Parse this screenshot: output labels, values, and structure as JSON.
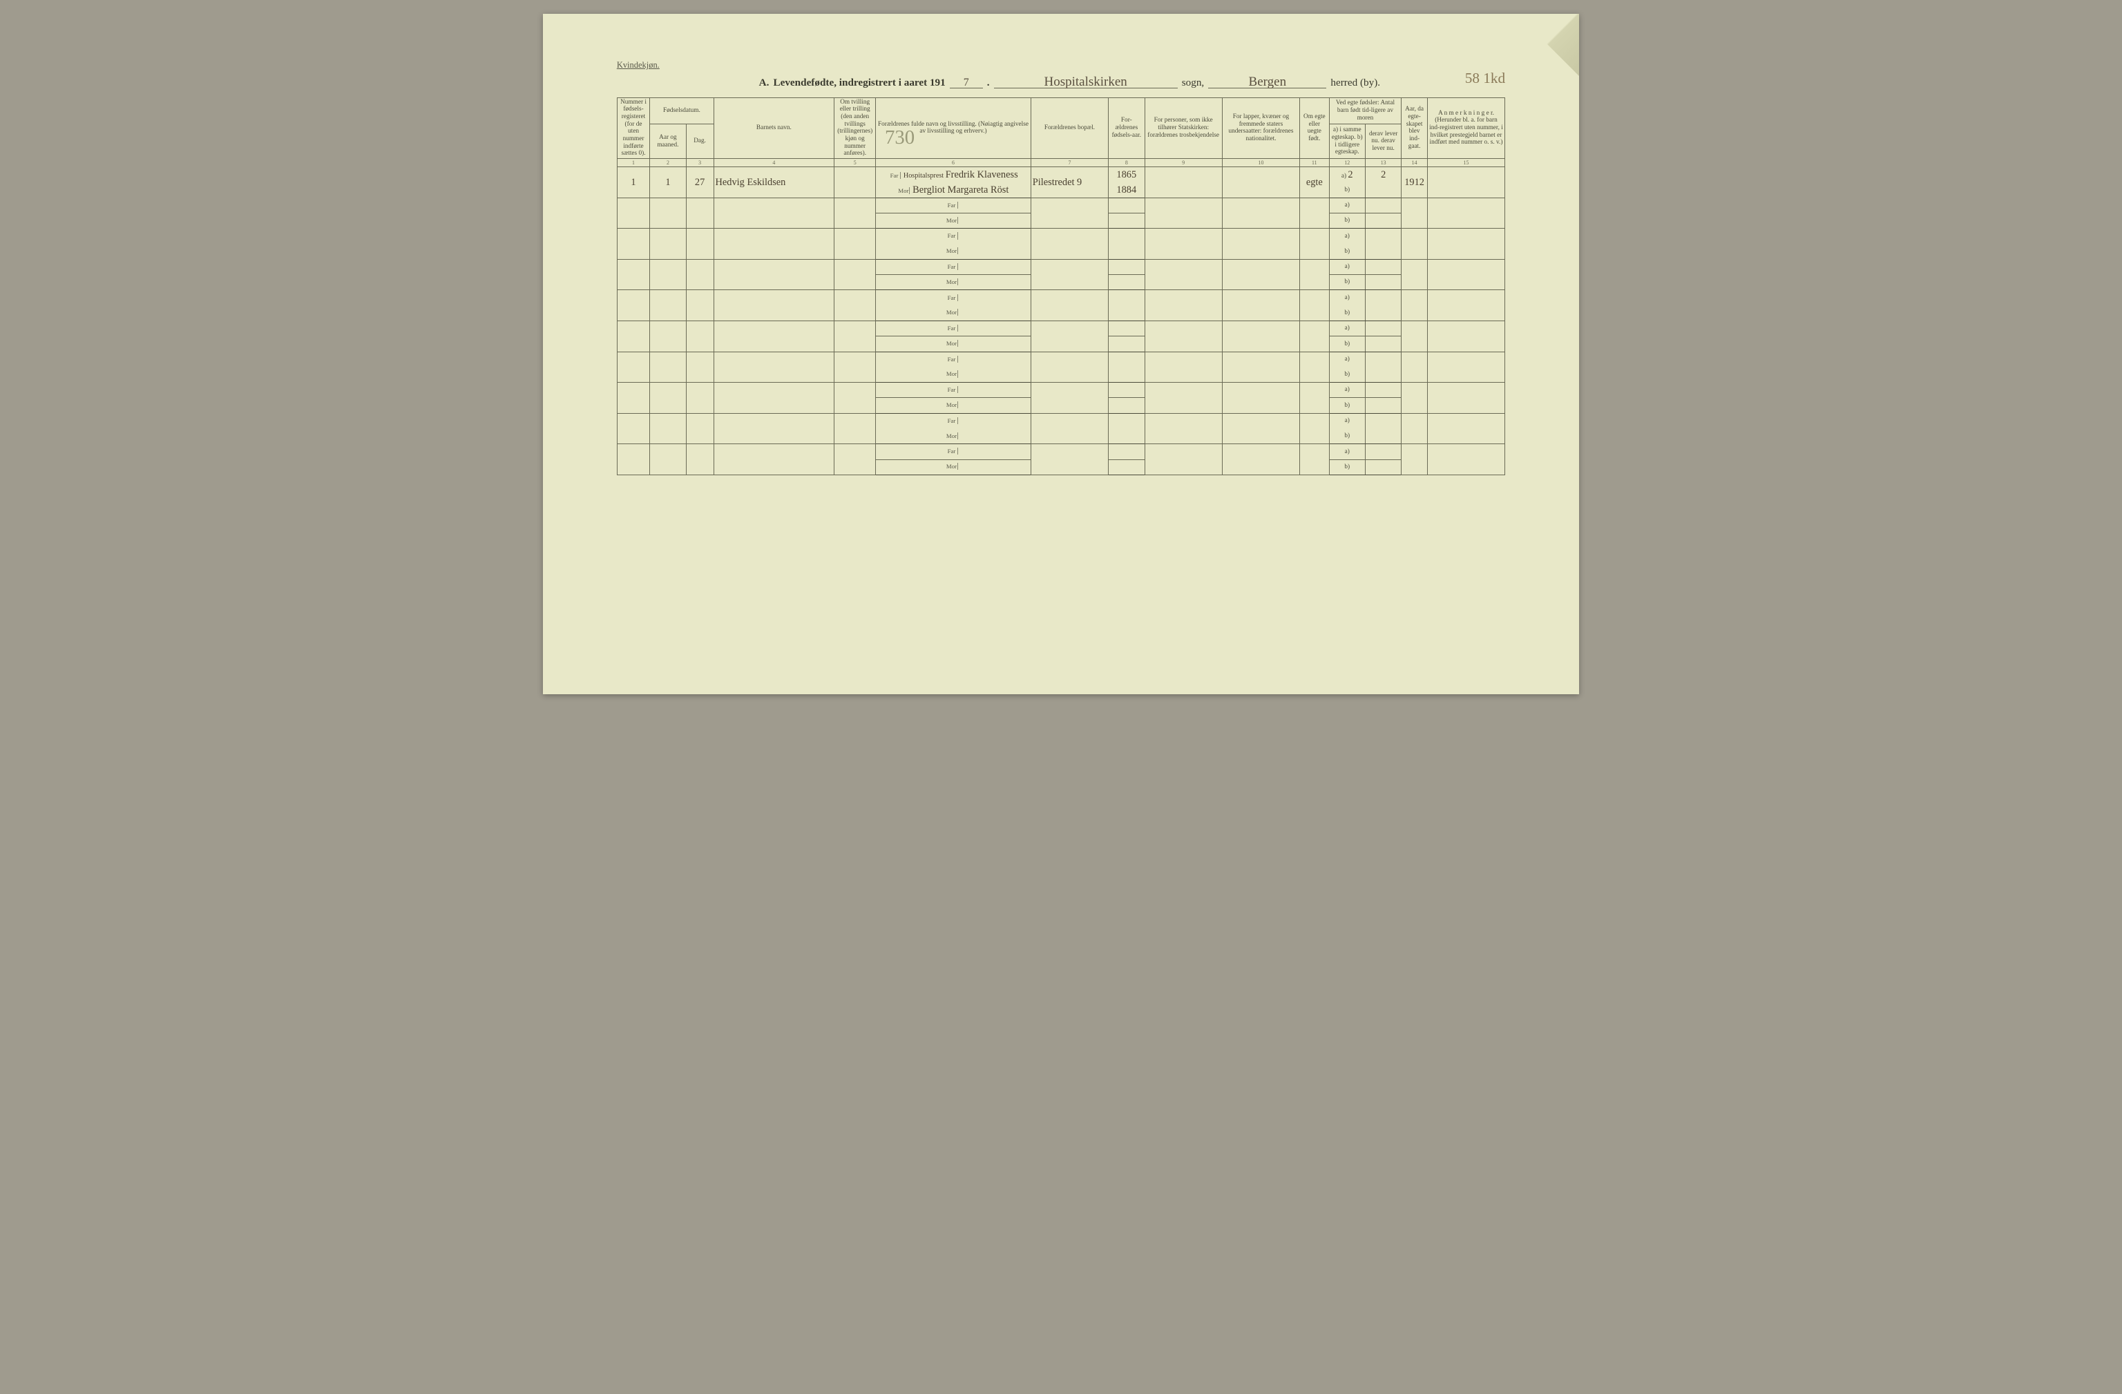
{
  "page": {
    "background_color": "#e8e8c8",
    "line_color": "#6a6a55",
    "text_color": "#4a4a3a",
    "handwriting_color": "#4a4030",
    "faint_hand_color": "#9a9a7a",
    "font_family_print": "Times New Roman",
    "font_family_hand": "Brush Script MT",
    "aspect_ratio": "3072 / 2018"
  },
  "corner_label": "Kvindekjøn.",
  "title": {
    "prefix_letter": "A.",
    "main": "Levendefødte, indregistrert i aaret 191",
    "year_digit": "7",
    "sogn_value": "Hospitalskirken",
    "sogn_label": "sogn,",
    "herred_value": "Bergen",
    "herred_label": "herred (by).",
    "page_number_hand": "58 1kd"
  },
  "annot_upper": "730",
  "columns": {
    "widths_pct": [
      3.8,
      4.2,
      3.2,
      14,
      4.8,
      18,
      9,
      4.2,
      9,
      9,
      3.4,
      4.2,
      4.2,
      3,
      9
    ],
    "c1": "Nummer i fødsels-registeret (for de uten nummer indførte sættes 0).",
    "c2_top": "Fødselsdatum.",
    "c2a": "Aar og maaned.",
    "c2b": "Dag.",
    "c4": "Barnets navn.",
    "c5": "Om tvilling eller trilling (den anden tvillings (trillingernes) kjøn og nummer anføres).",
    "c6": "Forældrenes fulde navn og livsstilling. (Nøiagtig angivelse av livsstilling og erhverv.)",
    "c7": "Forældrenes bopæl.",
    "c8": "For-ældrenes fødsels-aar.",
    "c9": "For personer, som ikke tilhører Statskirken: forældrenes trosbekjendelse",
    "c10": "For lapper, kvæner og fremmede staters undersaatter: forældrenes nationalitet.",
    "c11": "Om egte eller uegte født.",
    "c12_top": "Ved egte fødsler: Antal barn født tid-ligere av moren",
    "c12a": "a) i samme egteskap. b) i tidligere egteskap.",
    "c12b": "derav lever nu. derav lever nu.",
    "c14": "Aar, da egte-skapet blev ind-gaat.",
    "c15": "A n m e r k n i n g e r. (Herunder bl. a. for barn ind-registrert uten nummer, i hvilket prestegjeld barnet er indført med nummer o. s. v.)",
    "numbers": [
      "1",
      "2",
      "3",
      "4",
      "5",
      "6",
      "7",
      "8",
      "9",
      "10",
      "11",
      "12",
      "13",
      "14",
      "15"
    ]
  },
  "parent_labels": {
    "far": "Far",
    "mor": "Mor"
  },
  "ab_labels": {
    "a": "a)",
    "b": "b)"
  },
  "row1": {
    "num": "1",
    "aar_mnd": "1",
    "dag": "27",
    "barn": "Hedvig Eskildsen",
    "far_stilling": "Hospitalsprest",
    "far_navn": "Fredrik Klaveness",
    "mor_navn": "Bergliot Margareta Röst",
    "bopel": "Pilestredet 9",
    "far_aar": "1865",
    "mor_aar": "1884",
    "egte": "egte",
    "antal_a": "2",
    "lever_a": "2",
    "egteskap_aar": "1912"
  },
  "blank_rows": 9
}
